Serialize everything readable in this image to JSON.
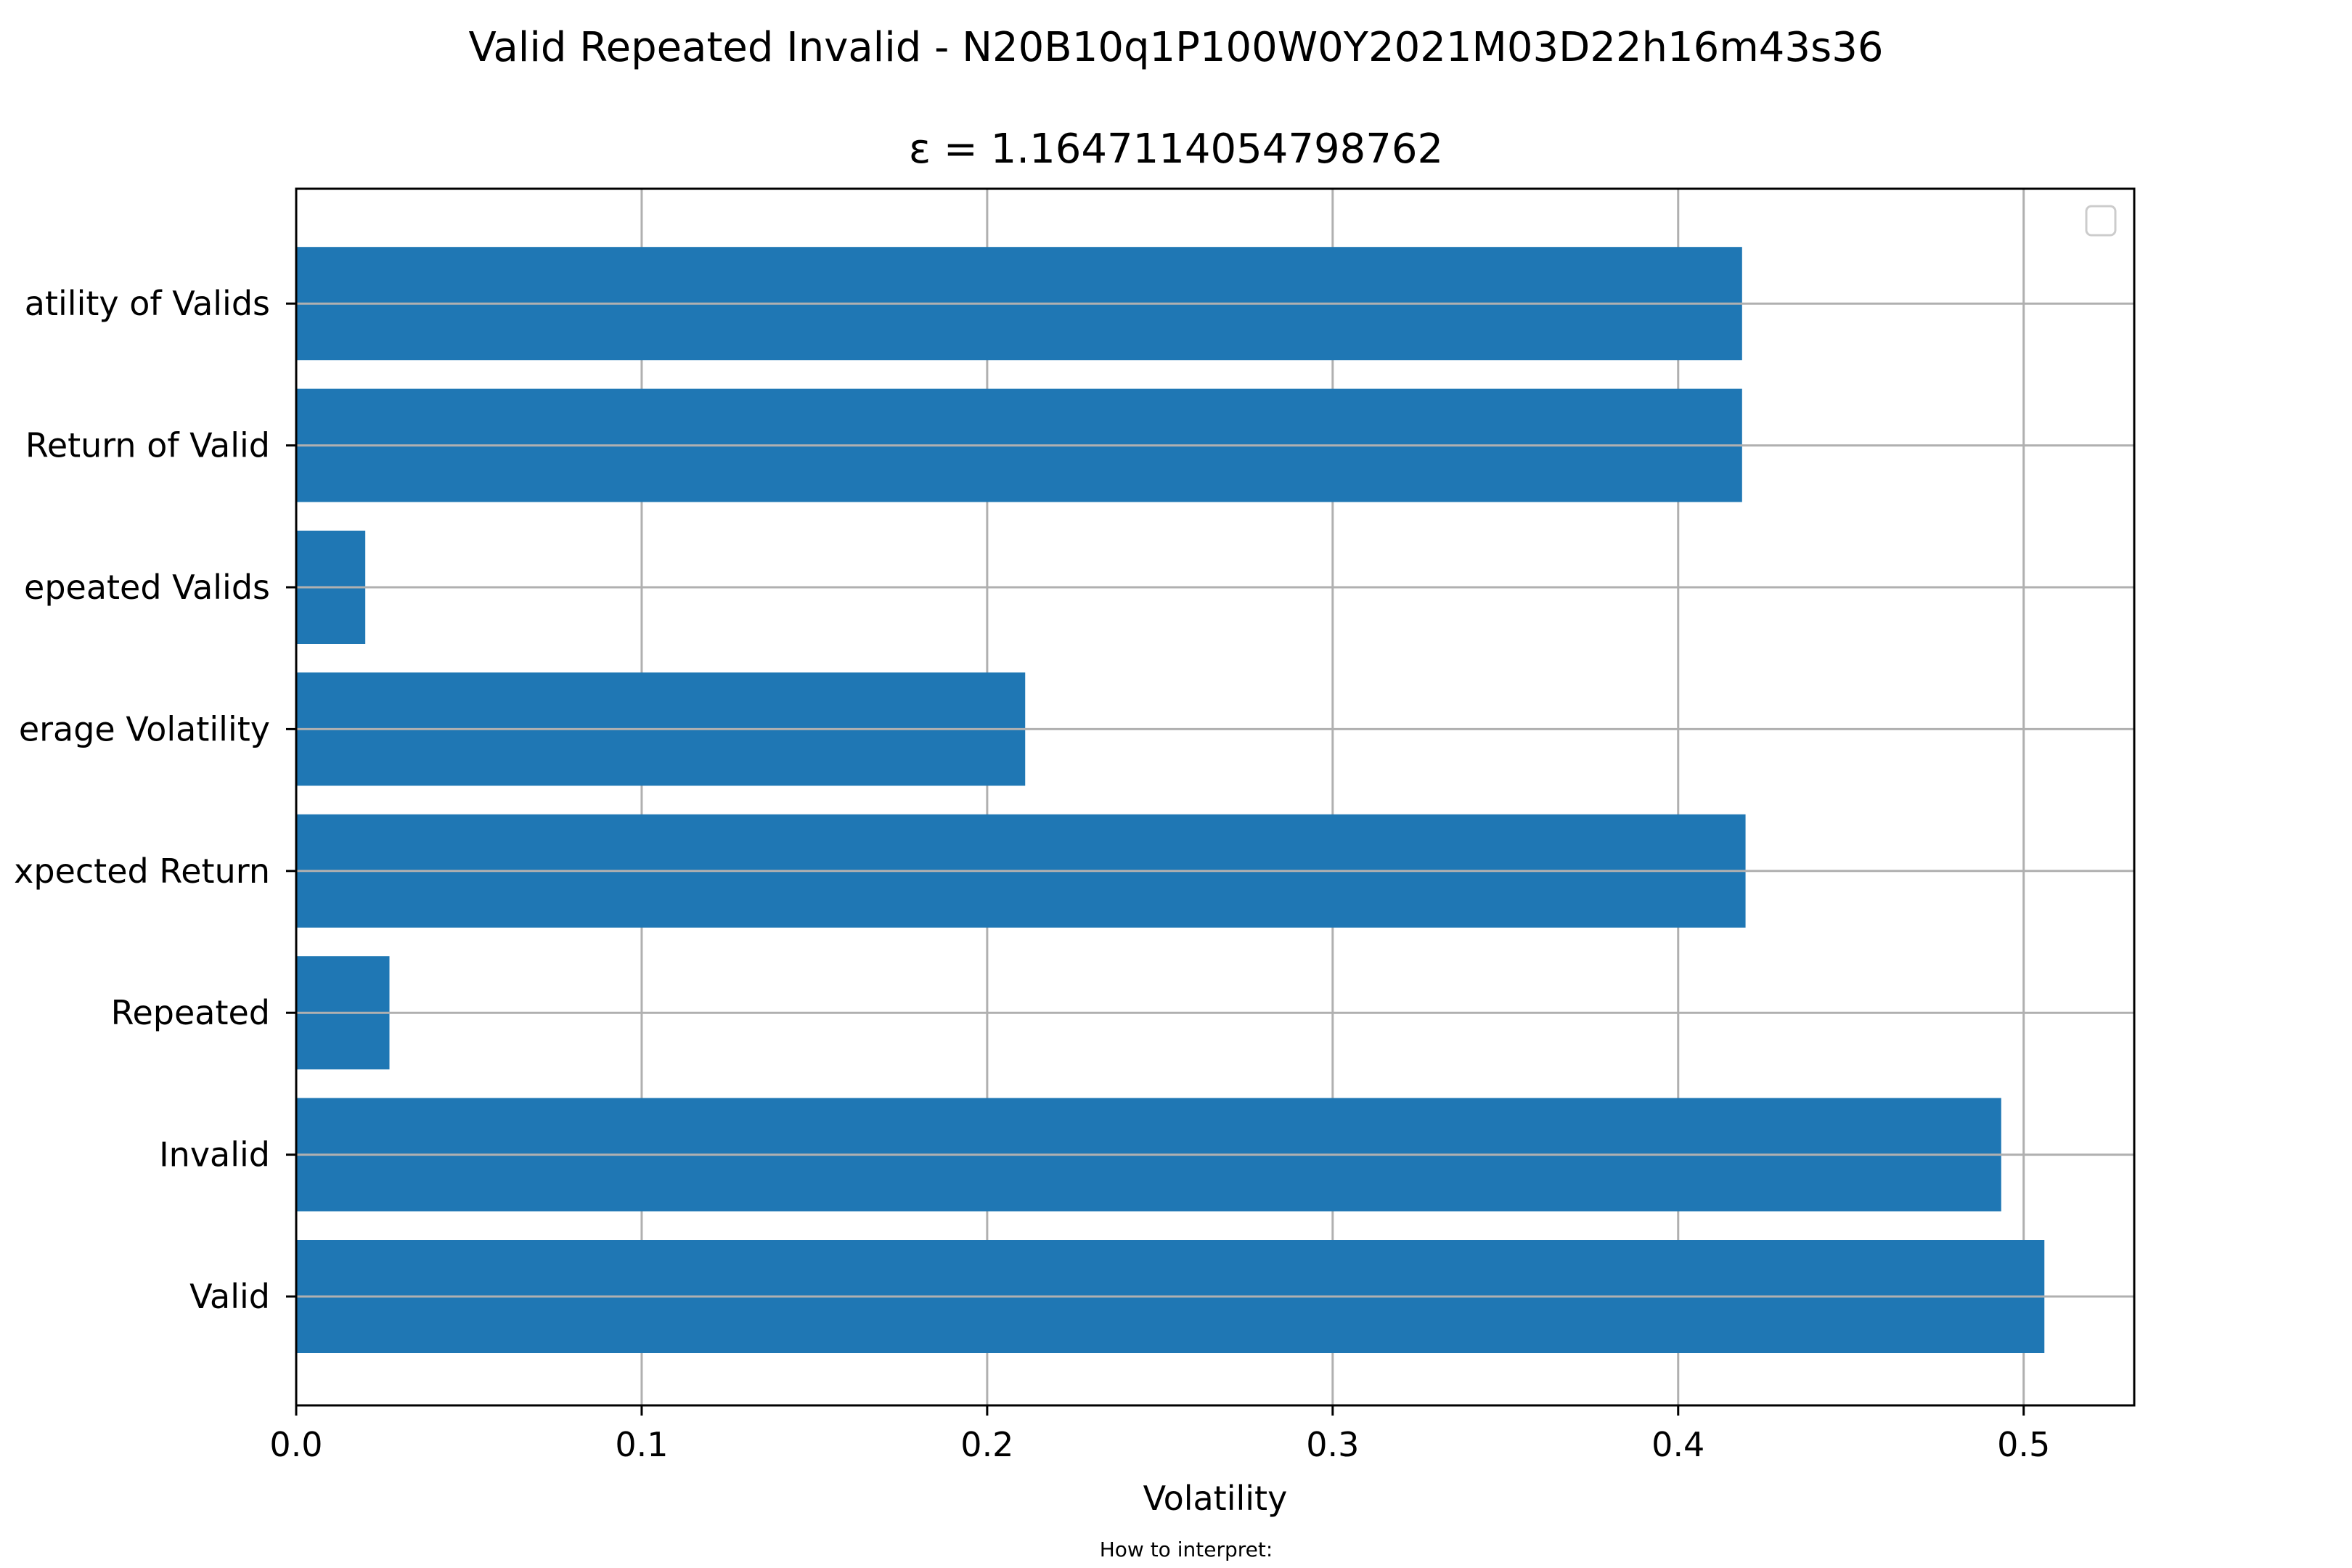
{
  "chart_data": {
    "type": "bar",
    "orientation": "horizontal",
    "title": "Valid Repeated Invalid - N20B10q1P100W0Y2021M03D22h16m43s36",
    "subtitle": "ε = 1.1647114054798762",
    "xlabel": "Volatility",
    "ylabel": "",
    "footnote": "How to interpret:",
    "categories": [
      "Valid",
      "Invalid",
      "Repeated",
      "Expected Return",
      "Average Volatility",
      "Repeated Valids",
      "Return of Valid",
      "Volatility of Valids"
    ],
    "category_labels_visible": [
      "Valid",
      "Invalid",
      "Repeated",
      "xpected Return",
      "erage Volatility",
      "epeated Valids",
      "Return of Valid",
      "atility of Valids"
    ],
    "values": [
      0.506,
      0.4935,
      0.027,
      0.4195,
      0.211,
      0.02,
      0.4185,
      0.4185
    ],
    "xlim": [
      0,
      0.532
    ],
    "xticks": [
      "0.0",
      "0.1",
      "0.2",
      "0.3",
      "0.4",
      "0.5"
    ],
    "xtick_values": [
      0,
      0.1,
      0.2,
      0.3,
      0.4,
      0.5
    ],
    "grid": true,
    "legend": "top-right, empty",
    "bar_color": "#1f77b4",
    "grid_color": "#b0b0b0"
  }
}
